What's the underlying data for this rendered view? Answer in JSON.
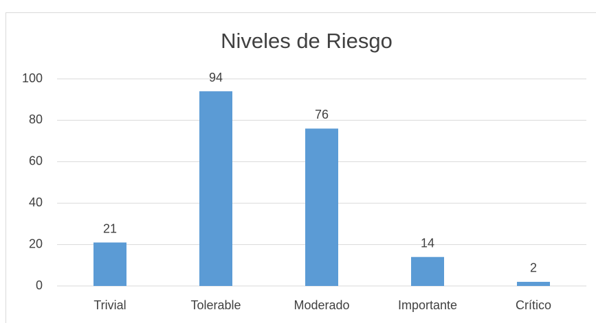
{
  "chart_data": {
    "type": "bar",
    "title": "Niveles de Riesgo",
    "categories": [
      "Trivial",
      "Tolerable",
      "Moderado",
      "Importante",
      "Crítico"
    ],
    "values": [
      21,
      94,
      76,
      14,
      2
    ],
    "color": "#5b9bd5",
    "ylim": [
      0,
      100
    ],
    "yticks": [
      0,
      20,
      40,
      60,
      80,
      100
    ],
    "grid": true
  }
}
